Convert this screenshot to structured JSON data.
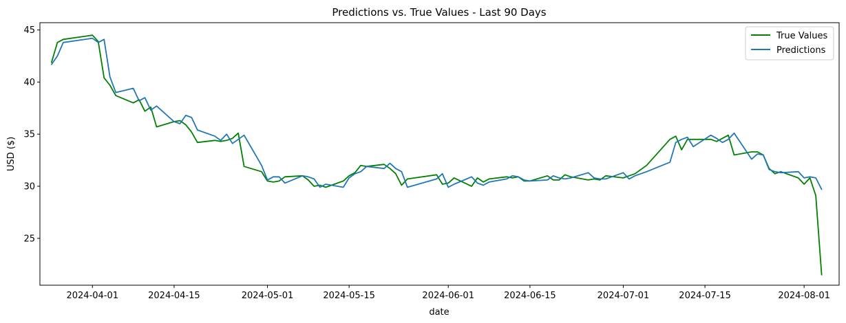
{
  "chart_data": {
    "type": "line",
    "title": "Predictions vs. True Values - Last 90 Days",
    "xlabel": "date",
    "ylabel": "USD ($)",
    "xlim": [
      "2024-03-23",
      "2024-08-07"
    ],
    "ylim": [
      20.5,
      45.7
    ],
    "x_ticks": [
      "2024-04-01",
      "2024-04-15",
      "2024-05-01",
      "2024-05-15",
      "2024-06-01",
      "2024-06-15",
      "2024-07-01",
      "2024-07-15",
      "2024-08-01"
    ],
    "y_ticks": [
      25,
      30,
      35,
      40,
      45
    ],
    "grid": false,
    "legend": "top-right",
    "series": [
      {
        "name": "True Values",
        "color": "#008000",
        "points": [
          [
            "2024-03-25",
            41.9
          ],
          [
            "2024-03-26",
            43.8
          ],
          [
            "2024-03-27",
            44.1
          ],
          [
            "2024-04-01",
            44.5
          ],
          [
            "2024-04-02",
            43.9
          ],
          [
            "2024-04-03",
            40.4
          ],
          [
            "2024-04-04",
            39.7
          ],
          [
            "2024-04-05",
            38.7
          ],
          [
            "2024-04-08",
            38.0
          ],
          [
            "2024-04-09",
            38.3
          ],
          [
            "2024-04-10",
            37.2
          ],
          [
            "2024-04-11",
            37.6
          ],
          [
            "2024-04-12",
            35.7
          ],
          [
            "2024-04-15",
            36.2
          ],
          [
            "2024-04-16",
            36.3
          ],
          [
            "2024-04-17",
            35.9
          ],
          [
            "2024-04-18",
            35.2
          ],
          [
            "2024-04-19",
            34.2
          ],
          [
            "2024-04-22",
            34.4
          ],
          [
            "2024-04-23",
            34.3
          ],
          [
            "2024-04-24",
            34.4
          ],
          [
            "2024-04-25",
            34.6
          ],
          [
            "2024-04-26",
            35.1
          ],
          [
            "2024-04-27",
            31.9
          ],
          [
            "2024-04-30",
            31.4
          ],
          [
            "2024-05-01",
            30.5
          ],
          [
            "2024-05-02",
            30.4
          ],
          [
            "2024-05-03",
            30.5
          ],
          [
            "2024-05-04",
            30.9
          ],
          [
            "2024-05-07",
            31.0
          ],
          [
            "2024-05-08",
            30.6
          ],
          [
            "2024-05-09",
            30.0
          ],
          [
            "2024-05-10",
            30.1
          ],
          [
            "2024-05-11",
            29.9
          ],
          [
            "2024-05-14",
            30.5
          ],
          [
            "2024-05-15",
            31.0
          ],
          [
            "2024-05-16",
            31.3
          ],
          [
            "2024-05-17",
            32.0
          ],
          [
            "2024-05-18",
            31.9
          ],
          [
            "2024-05-21",
            32.1
          ],
          [
            "2024-05-22",
            31.7
          ],
          [
            "2024-05-23",
            31.2
          ],
          [
            "2024-05-24",
            30.1
          ],
          [
            "2024-05-25",
            30.7
          ],
          [
            "2024-05-30",
            31.1
          ],
          [
            "2024-05-31",
            30.2
          ],
          [
            "2024-06-01",
            30.3
          ],
          [
            "2024-06-02",
            30.8
          ],
          [
            "2024-06-05",
            30.0
          ],
          [
            "2024-06-06",
            30.8
          ],
          [
            "2024-06-07",
            30.4
          ],
          [
            "2024-06-08",
            30.7
          ],
          [
            "2024-06-11",
            30.9
          ],
          [
            "2024-06-12",
            30.8
          ],
          [
            "2024-06-13",
            30.9
          ],
          [
            "2024-06-14",
            30.5
          ],
          [
            "2024-06-15",
            30.5
          ],
          [
            "2024-06-18",
            31.0
          ],
          [
            "2024-06-19",
            30.6
          ],
          [
            "2024-06-20",
            30.6
          ],
          [
            "2024-06-21",
            31.1
          ],
          [
            "2024-06-22",
            30.9
          ],
          [
            "2024-06-25",
            30.6
          ],
          [
            "2024-06-26",
            30.7
          ],
          [
            "2024-06-27",
            30.6
          ],
          [
            "2024-06-28",
            31.0
          ],
          [
            "2024-07-01",
            30.8
          ],
          [
            "2024-07-02",
            31.0
          ],
          [
            "2024-07-03",
            31.2
          ],
          [
            "2024-07-05",
            32.0
          ],
          [
            "2024-07-09",
            34.5
          ],
          [
            "2024-07-10",
            34.8
          ],
          [
            "2024-07-11",
            33.5
          ],
          [
            "2024-07-12",
            34.5
          ],
          [
            "2024-07-13",
            34.5
          ],
          [
            "2024-07-16",
            34.5
          ],
          [
            "2024-07-17",
            34.3
          ],
          [
            "2024-07-18",
            34.6
          ],
          [
            "2024-07-19",
            34.9
          ],
          [
            "2024-07-20",
            33.0
          ],
          [
            "2024-07-23",
            33.3
          ],
          [
            "2024-07-24",
            33.3
          ],
          [
            "2024-07-25",
            33.0
          ],
          [
            "2024-07-26",
            31.7
          ],
          [
            "2024-07-27",
            31.2
          ],
          [
            "2024-07-28",
            31.4
          ],
          [
            "2024-07-31",
            30.8
          ],
          [
            "2024-08-01",
            30.2
          ],
          [
            "2024-08-02",
            30.8
          ],
          [
            "2024-08-03",
            29.1
          ],
          [
            "2024-08-04",
            21.5
          ]
        ]
      },
      {
        "name": "Predictions",
        "color": "#1f77b4",
        "points": [
          [
            "2024-03-25",
            41.7
          ],
          [
            "2024-03-26",
            42.5
          ],
          [
            "2024-03-27",
            43.8
          ],
          [
            "2024-04-01",
            44.2
          ],
          [
            "2024-04-02",
            43.8
          ],
          [
            "2024-04-03",
            44.1
          ],
          [
            "2024-04-04",
            40.5
          ],
          [
            "2024-04-05",
            39.0
          ],
          [
            "2024-04-08",
            39.4
          ],
          [
            "2024-04-09",
            38.2
          ],
          [
            "2024-04-10",
            38.5
          ],
          [
            "2024-04-11",
            37.3
          ],
          [
            "2024-04-12",
            37.7
          ],
          [
            "2024-04-15",
            36.2
          ],
          [
            "2024-04-16",
            36.0
          ],
          [
            "2024-04-17",
            36.8
          ],
          [
            "2024-04-18",
            36.6
          ],
          [
            "2024-04-19",
            35.4
          ],
          [
            "2024-04-22",
            34.8
          ],
          [
            "2024-04-23",
            34.4
          ],
          [
            "2024-04-24",
            35.0
          ],
          [
            "2024-04-25",
            34.1
          ],
          [
            "2024-04-26",
            34.5
          ],
          [
            "2024-04-27",
            34.9
          ],
          [
            "2024-04-30",
            32.0
          ],
          [
            "2024-05-01",
            30.6
          ],
          [
            "2024-05-02",
            30.9
          ],
          [
            "2024-05-03",
            30.9
          ],
          [
            "2024-05-04",
            30.3
          ],
          [
            "2024-05-07",
            31.0
          ],
          [
            "2024-05-08",
            30.9
          ],
          [
            "2024-05-09",
            30.7
          ],
          [
            "2024-05-10",
            29.9
          ],
          [
            "2024-05-11",
            30.2
          ],
          [
            "2024-05-14",
            29.9
          ],
          [
            "2024-05-15",
            30.8
          ],
          [
            "2024-05-16",
            31.2
          ],
          [
            "2024-05-17",
            31.4
          ],
          [
            "2024-05-18",
            31.9
          ],
          [
            "2024-05-21",
            31.7
          ],
          [
            "2024-05-22",
            32.2
          ],
          [
            "2024-05-23",
            31.7
          ],
          [
            "2024-05-24",
            31.4
          ],
          [
            "2024-05-25",
            29.9
          ],
          [
            "2024-05-30",
            30.7
          ],
          [
            "2024-05-31",
            31.2
          ],
          [
            "2024-06-01",
            29.9
          ],
          [
            "2024-06-02",
            30.2
          ],
          [
            "2024-06-05",
            30.9
          ],
          [
            "2024-06-06",
            30.3
          ],
          [
            "2024-06-07",
            30.1
          ],
          [
            "2024-06-08",
            30.4
          ],
          [
            "2024-06-11",
            30.7
          ],
          [
            "2024-06-12",
            31.0
          ],
          [
            "2024-06-13",
            30.9
          ],
          [
            "2024-06-14",
            30.6
          ],
          [
            "2024-06-15",
            30.5
          ],
          [
            "2024-06-18",
            30.6
          ],
          [
            "2024-06-19",
            31.0
          ],
          [
            "2024-06-20",
            30.8
          ],
          [
            "2024-06-21",
            30.7
          ],
          [
            "2024-06-22",
            30.8
          ],
          [
            "2024-06-25",
            31.3
          ],
          [
            "2024-06-26",
            30.8
          ],
          [
            "2024-06-27",
            30.7
          ],
          [
            "2024-06-28",
            30.7
          ],
          [
            "2024-07-01",
            31.3
          ],
          [
            "2024-07-02",
            30.7
          ],
          [
            "2024-07-03",
            31.0
          ],
          [
            "2024-07-05",
            31.4
          ],
          [
            "2024-07-09",
            32.3
          ],
          [
            "2024-07-10",
            34.2
          ],
          [
            "2024-07-11",
            34.5
          ],
          [
            "2024-07-12",
            34.7
          ],
          [
            "2024-07-13",
            33.8
          ],
          [
            "2024-07-16",
            34.9
          ],
          [
            "2024-07-17",
            34.6
          ],
          [
            "2024-07-18",
            34.2
          ],
          [
            "2024-07-19",
            34.5
          ],
          [
            "2024-07-20",
            35.1
          ],
          [
            "2024-07-23",
            32.6
          ],
          [
            "2024-07-24",
            33.1
          ],
          [
            "2024-07-25",
            33.0
          ],
          [
            "2024-07-26",
            31.6
          ],
          [
            "2024-07-27",
            31.4
          ],
          [
            "2024-07-28",
            31.3
          ],
          [
            "2024-07-31",
            31.4
          ],
          [
            "2024-08-01",
            30.8
          ],
          [
            "2024-08-02",
            30.9
          ],
          [
            "2024-08-03",
            30.8
          ],
          [
            "2024-08-04",
            29.7
          ]
        ]
      }
    ]
  }
}
